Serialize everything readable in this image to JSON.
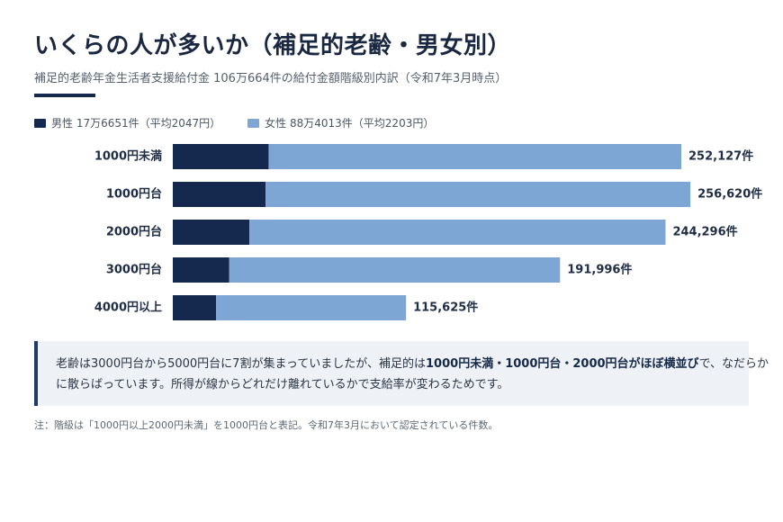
{
  "title": "いくらの人が多いか（補足的老齢・男女別）",
  "subtitle": "補足的老齢年金生活者支援給付金 106万664件の給付金額階級別内訳（令和7年3月時点）",
  "legend": {
    "male": "男性 17万6651件（平均2047円）",
    "female": "女性 88万4013件（平均2203円）"
  },
  "colors": {
    "male": "#15294f",
    "female": "#7ea6d4",
    "accent": "#1e3a66",
    "note_bg": "#eef2f6"
  },
  "chart_data": {
    "type": "bar",
    "orientation": "horizontal",
    "stacked": true,
    "categories": [
      "1000円未満",
      "1000円台",
      "2000円台",
      "3000円台",
      "4000円以上"
    ],
    "series": [
      {
        "name": "男性",
        "values": [
          47500,
          46000,
          38000,
          28000,
          21500
        ]
      },
      {
        "name": "女性",
        "values": [
          204627,
          210620,
          206296,
          163996,
          94125
        ]
      }
    ],
    "totals": [
      252127,
      256620,
      244296,
      191996,
      115625
    ],
    "total_labels": [
      "252,127件",
      "256,620件",
      "244,296件",
      "191,996件",
      "115,625件"
    ],
    "xlim": [
      0,
      252127
    ],
    "grid": false
  },
  "note": {
    "line1_pre": "老齢は3000円台から5000円台に7割が集まっていましたが、補足的は",
    "line1_bold": "1000円未満・1000円台・2000円台がほぼ横並び",
    "line1_post": "で、なだらか",
    "line2": "に散らばっています。所得が線からどれだけ離れているかで支給率が変わるためです。"
  },
  "footnote": "注：階級は「1000円以上2000円未満」を1000円台と表記。令和7年3月において認定されている件数。"
}
